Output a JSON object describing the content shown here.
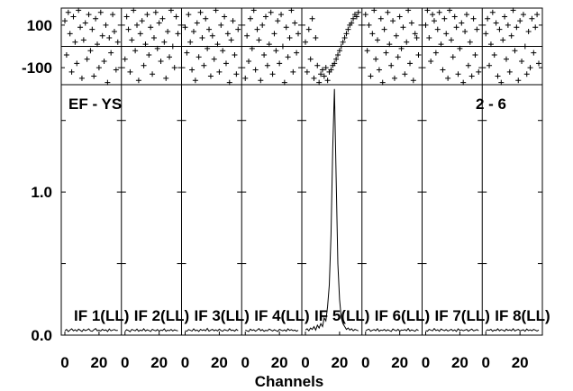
{
  "chart_data": {
    "type": "line",
    "baseline": "EF - YS",
    "corr_label": "2 - 6",
    "xlabel": "Channels",
    "x_ticks": [
      0,
      20
    ],
    "x_range": [
      0,
      31
    ],
    "amp_range": [
      0,
      1.75
    ],
    "amp_ticks": [
      {
        "v": 0.0,
        "label": "0.0"
      },
      {
        "v": 1.0,
        "label": "1.0"
      }
    ],
    "amp_minor_ticks": [
      0.5,
      1.5
    ],
    "phase_range": [
      -180,
      180
    ],
    "phase_ticks": [
      {
        "v": 100,
        "label": "100"
      },
      {
        "v": -100,
        "label": "-100"
      }
    ],
    "phase_line": 0,
    "grid": false,
    "series": [
      {
        "name": "IF 1(LL)",
        "amp": [
          0.03,
          0.04,
          0.025,
          0.035,
          0.045,
          0.03,
          0.038,
          0.028,
          0.042,
          0.034,
          0.026,
          0.04,
          0.032,
          0.036,
          0.044,
          0.03,
          0.027,
          0.038,
          0.046,
          0.031,
          0.035,
          0.029,
          0.041,
          0.033,
          0.037,
          0.025,
          0.043,
          0.03,
          0.036,
          0.039,
          0.032,
          0.034
        ],
        "phase": [
          120,
          -40,
          160,
          60,
          -120,
          140,
          20,
          -80,
          170,
          90,
          -150,
          30,
          110,
          -60,
          150,
          -20,
          80,
          -140,
          130,
          10,
          -100,
          160,
          50,
          -70,
          100,
          -170,
          40,
          -30,
          150,
          70,
          -110,
          20
        ]
      },
      {
        "name": "IF 2(LL)",
        "amp": [
          0.028,
          0.038,
          0.033,
          0.024,
          0.04,
          0.035,
          0.03,
          0.042,
          0.027,
          0.036,
          0.031,
          0.045,
          0.029,
          0.037,
          0.033,
          0.026,
          0.041,
          0.034,
          0.03,
          0.039,
          0.028,
          0.036,
          0.032,
          0.044,
          0.027,
          0.035,
          0.031,
          0.04,
          0.029,
          0.037,
          0.033,
          0.03
        ],
        "phase": [
          -60,
          140,
          80,
          -120,
          30,
          170,
          -20,
          100,
          -160,
          60,
          120,
          -90,
          10,
          150,
          -40,
          90,
          -130,
          40,
          160,
          -10,
          110,
          -70,
          130,
          20,
          -150,
          70,
          -50,
          170,
          0,
          -100,
          140,
          60
        ]
      },
      {
        "name": "IF 3(LL)",
        "amp": [
          0.032,
          0.027,
          0.039,
          0.034,
          0.029,
          0.044,
          0.031,
          0.036,
          0.026,
          0.041,
          0.033,
          0.038,
          0.03,
          0.047,
          0.028,
          0.035,
          0.04,
          0.031,
          0.037,
          0.029,
          0.042,
          0.033,
          0.027,
          0.039,
          0.034,
          0.03,
          0.045,
          0.032,
          0.036,
          0.028,
          0.04,
          0.031
        ],
        "phase": [
          90,
          -30,
          150,
          20,
          -110,
          70,
          -160,
          110,
          -50,
          160,
          40,
          -90,
          130,
          -10,
          80,
          -140,
          50,
          -60,
          170,
          10,
          -120,
          100,
          -20,
          140,
          -80,
          60,
          -170,
          30,
          120,
          -40,
          -130,
          80
        ]
      },
      {
        "name": "IF 4(LL)",
        "amp": [
          0.036,
          0.03,
          0.025,
          0.042,
          0.033,
          0.038,
          0.028,
          0.035,
          0.046,
          0.031,
          0.039,
          0.027,
          0.034,
          0.03,
          0.043,
          0.036,
          0.029,
          0.038,
          0.032,
          0.026,
          0.041,
          0.035,
          0.03,
          0.037,
          0.028,
          0.044,
          0.033,
          0.039,
          0.031,
          0.036,
          0.027,
          0.034
        ],
        "phase": [
          -150,
          50,
          -70,
          130,
          -10,
          170,
          -110,
          80,
          30,
          -160,
          100,
          -40,
          140,
          -90,
          10,
          160,
          -130,
          60,
          -20,
          120,
          -80,
          150,
          0,
          -170,
          90,
          -50,
          40,
          170,
          -120,
          110,
          -30,
          60
        ]
      },
      {
        "name": "IF 5(LL)",
        "amp": [
          0.035,
          0.045,
          0.03,
          0.05,
          0.04,
          0.06,
          0.035,
          0.07,
          0.05,
          0.08,
          0.06,
          0.12,
          0.1,
          0.2,
          0.35,
          0.7,
          1.3,
          1.72,
          1.1,
          0.5,
          0.25,
          0.12,
          0.08,
          0.06,
          0.04,
          0.05,
          0.035,
          0.045,
          0.03,
          0.04,
          0.035,
          0.03
        ],
        "phase": [
          20,
          -120,
          80,
          -60,
          130,
          -150,
          40,
          -90,
          -170,
          -130,
          -110,
          -140,
          -100,
          -160,
          -120,
          -110,
          -90,
          -80,
          -60,
          -40,
          -20,
          0,
          20,
          40,
          60,
          80,
          100,
          110,
          130,
          150,
          140,
          160
        ]
      },
      {
        "name": "IF 6(LL)",
        "amp": [
          0.03,
          0.037,
          0.042,
          0.028,
          0.034,
          0.039,
          0.031,
          0.045,
          0.027,
          0.036,
          0.033,
          0.04,
          0.029,
          0.038,
          0.032,
          0.026,
          0.043,
          0.035,
          0.03,
          0.041,
          0.028,
          0.036,
          0.034,
          0.039,
          0.031,
          0.046,
          0.029,
          0.037,
          0.033,
          0.027,
          0.04,
          0.032
        ],
        "phase": [
          150,
          -20,
          100,
          -140,
          60,
          170,
          -60,
          30,
          -110,
          130,
          -170,
          80,
          -30,
          160,
          10,
          -90,
          120,
          -150,
          50,
          -50,
          140,
          -10,
          90,
          -130,
          20,
          170,
          -80,
          110,
          -160,
          60,
          40,
          -40
        ]
      },
      {
        "name": "IF 7(LL)",
        "amp": [
          0.033,
          0.028,
          0.04,
          0.035,
          0.03,
          0.046,
          0.032,
          0.038,
          0.027,
          0.043,
          0.036,
          0.031,
          0.039,
          0.029,
          0.034,
          0.041,
          0.03,
          0.037,
          0.026,
          0.044,
          0.033,
          0.038,
          0.031,
          0.035,
          0.04,
          0.028,
          0.036,
          0.042,
          0.03,
          0.034,
          0.039,
          0.031
        ],
        "phase": [
          100,
          170,
          40,
          -70,
          150,
          120,
          -30,
          80,
          160,
          10,
          -110,
          130,
          60,
          -150,
          170,
          30,
          -50,
          140,
          90,
          -130,
          -10,
          110,
          -170,
          70,
          150,
          -90,
          20,
          -140,
          130,
          -40,
          80,
          -120
        ]
      },
      {
        "name": "IF 8(LL)",
        "amp": [
          0.029,
          0.038,
          0.034,
          0.041,
          0.027,
          0.036,
          0.032,
          0.044,
          0.03,
          0.039,
          0.035,
          0.028,
          0.042,
          0.033,
          0.037,
          0.031,
          0.045,
          0.029,
          0.036,
          0.04,
          0.03,
          0.034,
          0.038,
          0.027,
          0.043,
          0.032,
          0.037,
          0.031,
          0.04,
          0.035,
          0.029,
          0.036
        ],
        "phase": [
          60,
          130,
          -90,
          10,
          160,
          -40,
          110,
          -140,
          80,
          -170,
          30,
          140,
          -60,
          100,
          -120,
          50,
          170,
          -20,
          90,
          -160,
          120,
          -70,
          150,
          0,
          -130,
          70,
          -100,
          130,
          -30,
          90,
          150,
          -80
        ]
      }
    ]
  }
}
